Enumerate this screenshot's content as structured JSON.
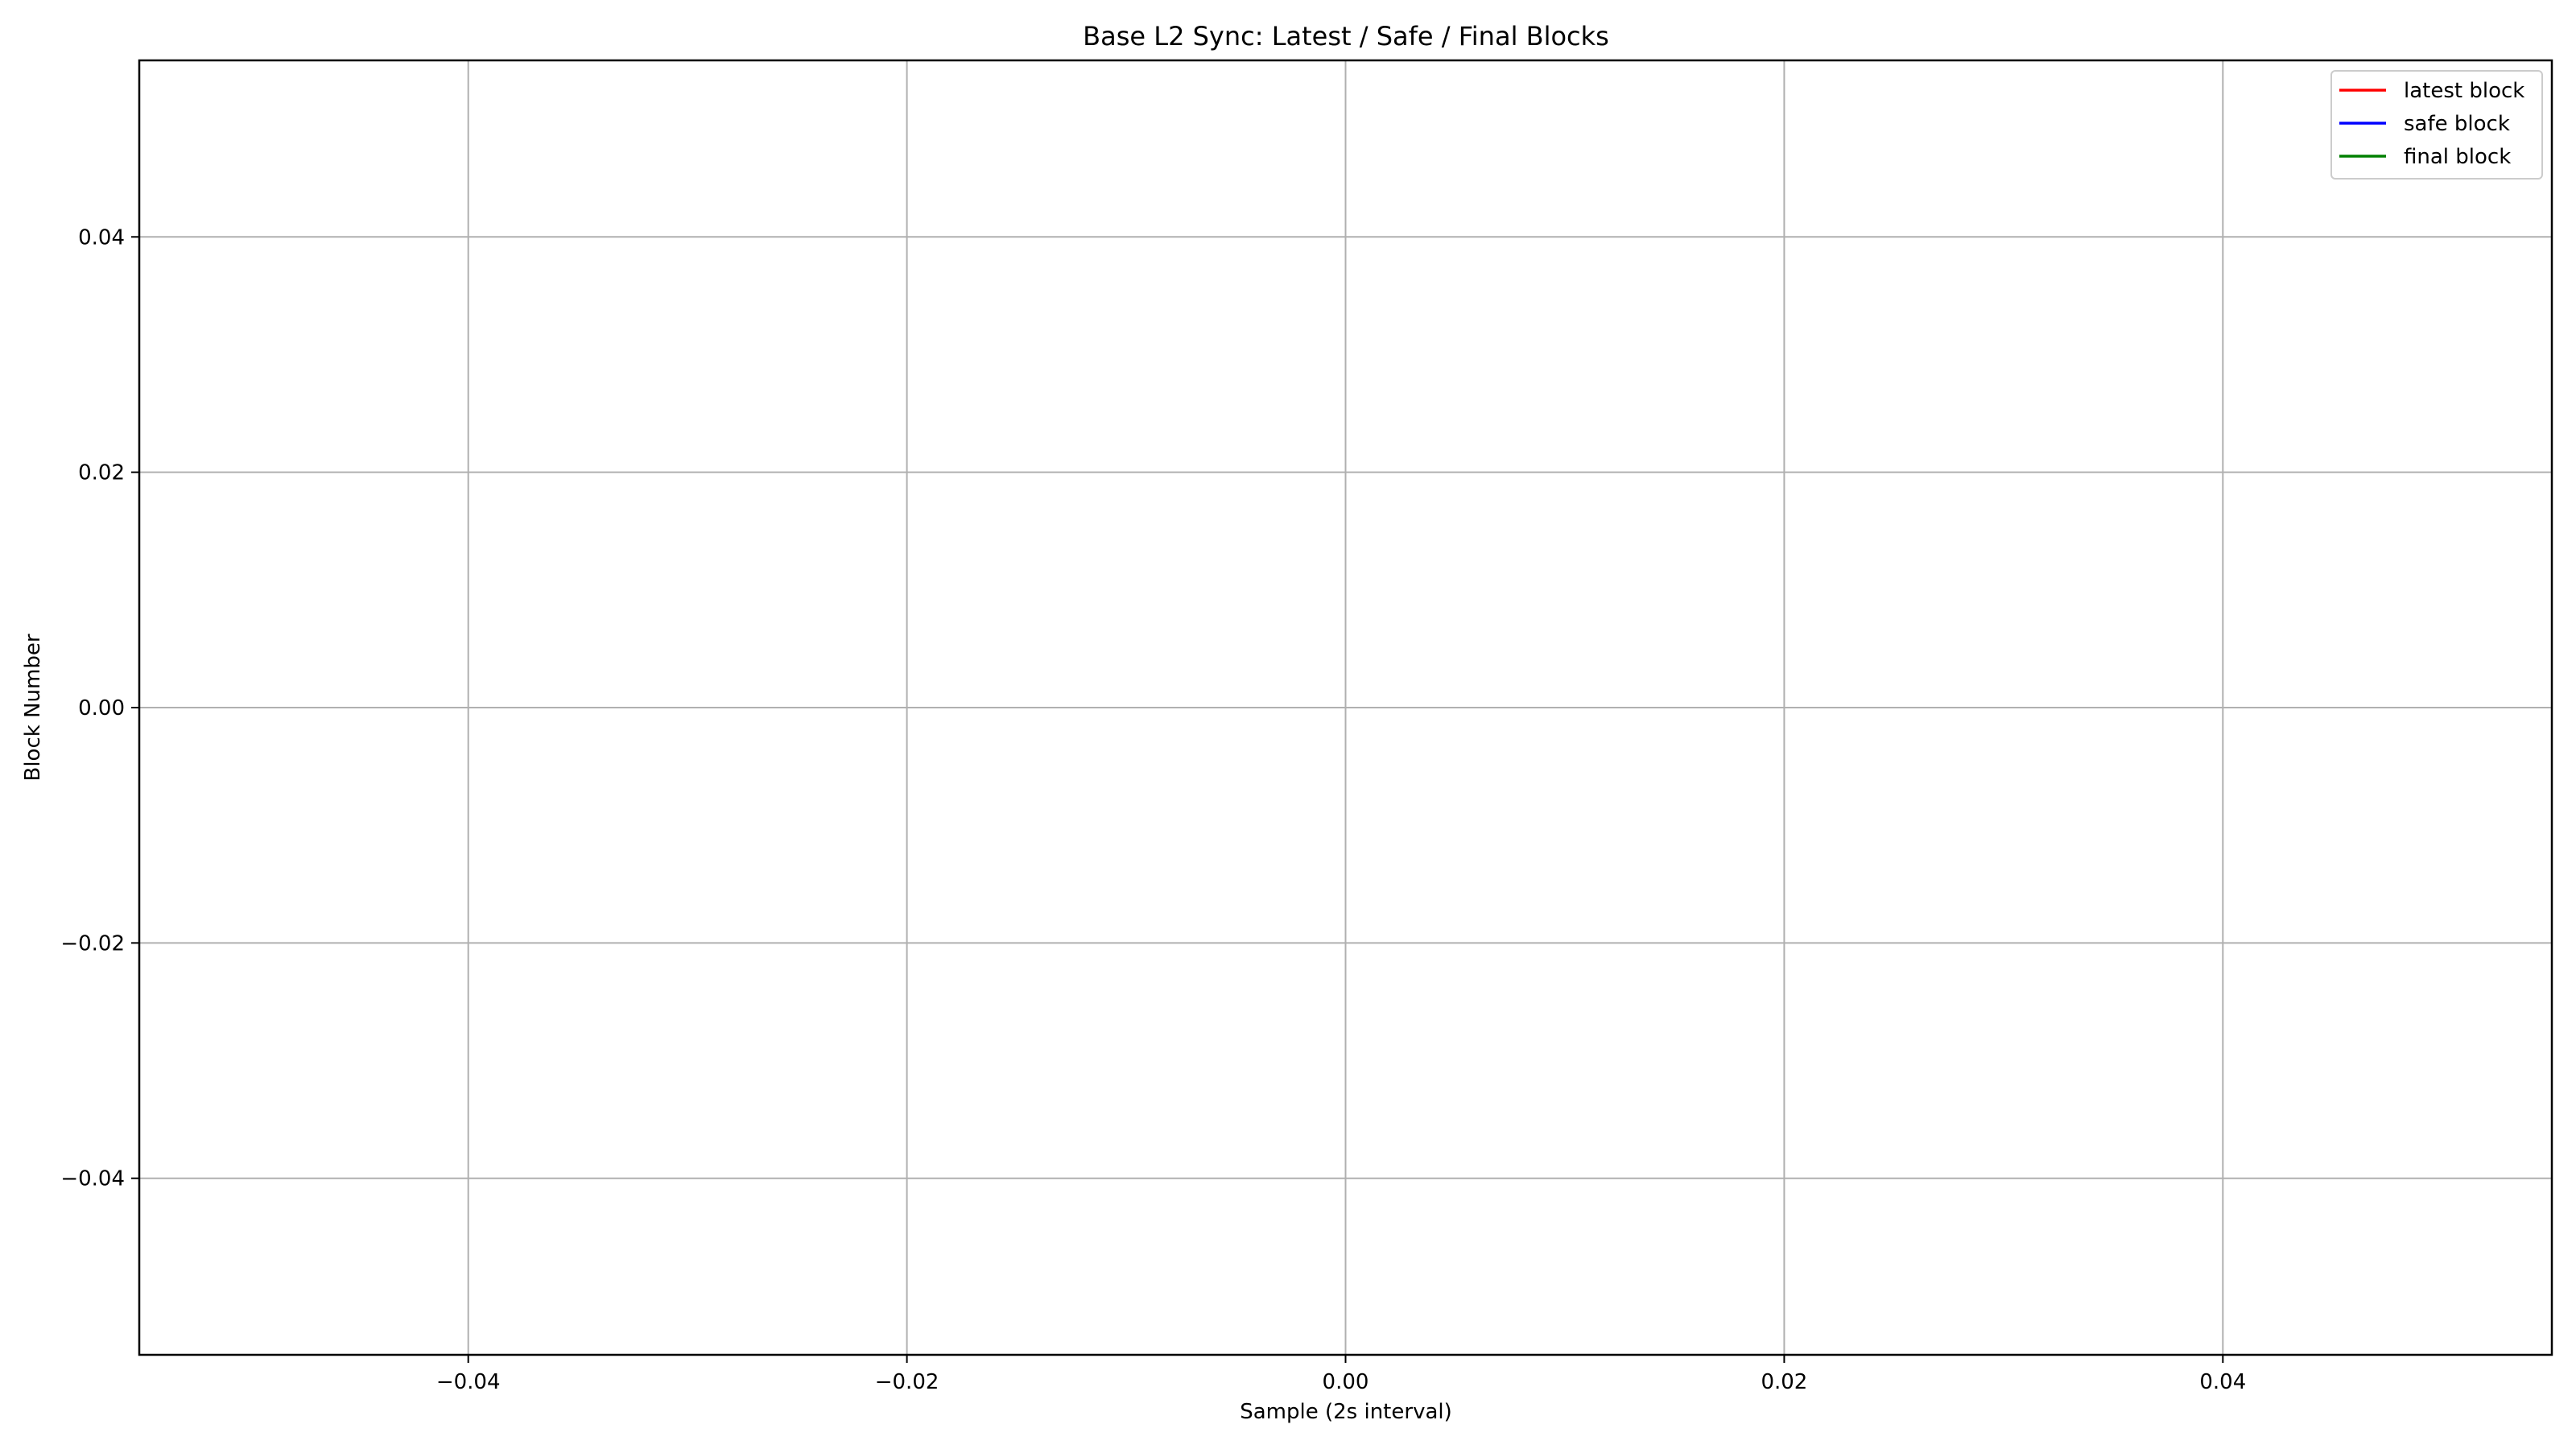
{
  "chart_data": {
    "type": "line",
    "title": "Base L2 Sync: Latest / Safe / Final Blocks",
    "xlabel": "Sample (2s interval)",
    "ylabel": "Block Number",
    "xlim": [
      -0.055,
      0.055
    ],
    "ylim": [
      -0.055,
      0.055
    ],
    "x_ticks": [
      -0.04,
      -0.02,
      0.0,
      0.02,
      0.04
    ],
    "y_ticks": [
      -0.04,
      -0.02,
      0.0,
      0.02,
      0.04
    ],
    "x_tick_labels": [
      "−0.04",
      "−0.02",
      "0.00",
      "0.02",
      "0.04"
    ],
    "y_tick_labels": [
      "−0.04",
      "−0.02",
      "0.00",
      "0.02",
      "0.04"
    ],
    "grid": true,
    "legend_location": "upper right",
    "series": [
      {
        "name": "latest block",
        "color": "#ff0000",
        "x": [],
        "y": []
      },
      {
        "name": "safe block",
        "color": "#0000ff",
        "x": [],
        "y": []
      },
      {
        "name": "final block",
        "color": "#008000",
        "x": [],
        "y": []
      }
    ]
  }
}
